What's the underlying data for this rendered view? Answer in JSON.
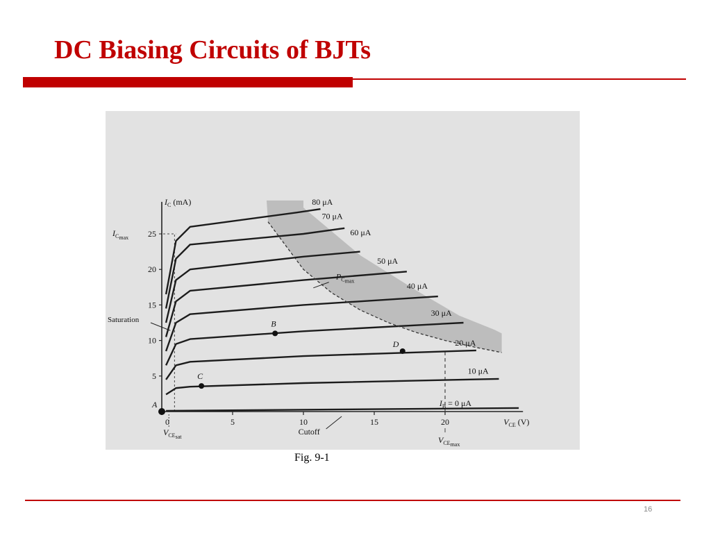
{
  "slide": {
    "title": "DC Biasing Circuits of BJTs",
    "caption": "Fig. 9-1",
    "page_number": "16",
    "accent_color": "#c00000"
  },
  "chart_data": {
    "type": "line",
    "xlabel": "V",
    "xlabel_sub": "CE",
    "xunit": "(V)",
    "ylabel": "I",
    "ylabel_sub": "C",
    "yunit": "(mA)",
    "xlim": [
      0,
      24
    ],
    "ylim": [
      0,
      29
    ],
    "x_ticks": [
      0,
      5,
      10,
      15,
      20
    ],
    "y_ticks": [
      5,
      10,
      15,
      20,
      25
    ],
    "grid": false,
    "series": [
      {
        "name": "I_B = 0 µA",
        "label": "= 0 μA",
        "label_prefix": "I",
        "label_sub": "B",
        "points": [
          [
            0.3,
            0.1
          ],
          [
            25.2,
            0.5
          ]
        ]
      },
      {
        "name": "10 µA",
        "label": "10 μA",
        "points": [
          [
            0.3,
            2.4
          ],
          [
            1.0,
            3.3
          ],
          [
            2.0,
            3.5
          ],
          [
            10,
            4.0
          ],
          [
            23.8,
            4.6
          ]
        ]
      },
      {
        "name": "20 µA",
        "label": "20 μA",
        "points": [
          [
            0.3,
            4.5
          ],
          [
            1.0,
            6.5
          ],
          [
            2.0,
            7.0
          ],
          [
            10,
            7.8
          ],
          [
            22.2,
            8.6
          ]
        ]
      },
      {
        "name": "30 µA",
        "label": "30 μA",
        "points": [
          [
            0.3,
            6.5
          ],
          [
            1.0,
            9.5
          ],
          [
            2.0,
            10.2
          ],
          [
            10,
            11.3
          ],
          [
            21.3,
            12.5
          ]
        ]
      },
      {
        "name": "40 µA",
        "label": "40 μA",
        "points": [
          [
            0.3,
            8.5
          ],
          [
            1.0,
            12.5
          ],
          [
            2.0,
            13.7
          ],
          [
            10,
            15.0
          ],
          [
            19.5,
            16.2
          ]
        ]
      },
      {
        "name": "50 µA",
        "label": "50 μA",
        "points": [
          [
            0.3,
            10.5
          ],
          [
            1.0,
            15.5
          ],
          [
            2.0,
            17.0
          ],
          [
            10,
            18.5
          ],
          [
            17.3,
            19.7
          ]
        ]
      },
      {
        "name": "60 µA",
        "label": "60 μA",
        "points": [
          [
            0.3,
            12.5
          ],
          [
            1.0,
            18.5
          ],
          [
            2.0,
            20.0
          ],
          [
            10,
            21.8
          ],
          [
            14.0,
            22.5
          ]
        ]
      },
      {
        "name": "70 µA",
        "label": "70 μA",
        "points": [
          [
            0.3,
            14.5
          ],
          [
            1.0,
            21.5
          ],
          [
            2.0,
            23.5
          ],
          [
            10,
            25.0
          ],
          [
            12.9,
            25.8
          ]
        ]
      },
      {
        "name": "80 µA",
        "label": "80 μA",
        "points": [
          [
            0.3,
            16.5
          ],
          [
            1.0,
            24.0
          ],
          [
            2.0,
            26.0
          ],
          [
            9.5,
            28.0
          ],
          [
            11.2,
            28.5
          ]
        ]
      }
    ],
    "pc_max_curve": {
      "label": "P",
      "label_sub": "C",
      "label_subsub": "max",
      "points": [
        [
          7.5,
          26.7
        ],
        [
          10,
          20
        ],
        [
          12,
          16.7
        ],
        [
          14,
          14.3
        ],
        [
          16,
          12.5
        ],
        [
          18,
          11.1
        ],
        [
          20,
          10
        ],
        [
          22,
          9.1
        ],
        [
          24,
          8.3
        ]
      ],
      "outer_points": [
        [
          10,
          28.7
        ],
        [
          14,
          22
        ],
        [
          18,
          17
        ],
        [
          21,
          13.5
        ],
        [
          23.5,
          11.5
        ],
        [
          24,
          11
        ]
      ]
    },
    "ic_max": {
      "value": 25,
      "label": "I",
      "label_sub": "C",
      "label_subsub": "max"
    },
    "vce_max": {
      "value": 20,
      "label": "V",
      "label_sub": "CE",
      "label_subsub": "max"
    },
    "vce_sat": {
      "value": 0.5,
      "label": "V",
      "label_sub": "CE",
      "label_subsub": "sat"
    },
    "regions": {
      "saturation": "Saturation",
      "cutoff": "Cutoff"
    },
    "points": [
      {
        "name": "A",
        "x": 0,
        "y": 0
      },
      {
        "name": "B",
        "x": 8,
        "y": 11
      },
      {
        "name": "C",
        "x": 2.8,
        "y": 3.6
      },
      {
        "name": "D",
        "x": 17,
        "y": 8.5
      }
    ]
  }
}
